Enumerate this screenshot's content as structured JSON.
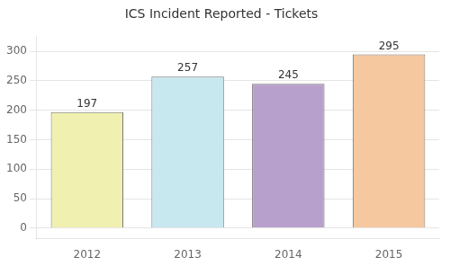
{
  "chart_data": {
    "type": "bar",
    "title": "ICS Incident Reported - Tickets",
    "categories": [
      "2012",
      "2013",
      "2014",
      "2015"
    ],
    "values": [
      197,
      257,
      245,
      295
    ],
    "colors": [
      "#f0f0b0",
      "#c8e8f0",
      "#b8a0cc",
      "#f5c8a0"
    ],
    "ylim": [
      -18,
      325
    ],
    "yticks": [
      0,
      50,
      100,
      150,
      200,
      250,
      300
    ],
    "grid": true,
    "data_labels": true
  }
}
